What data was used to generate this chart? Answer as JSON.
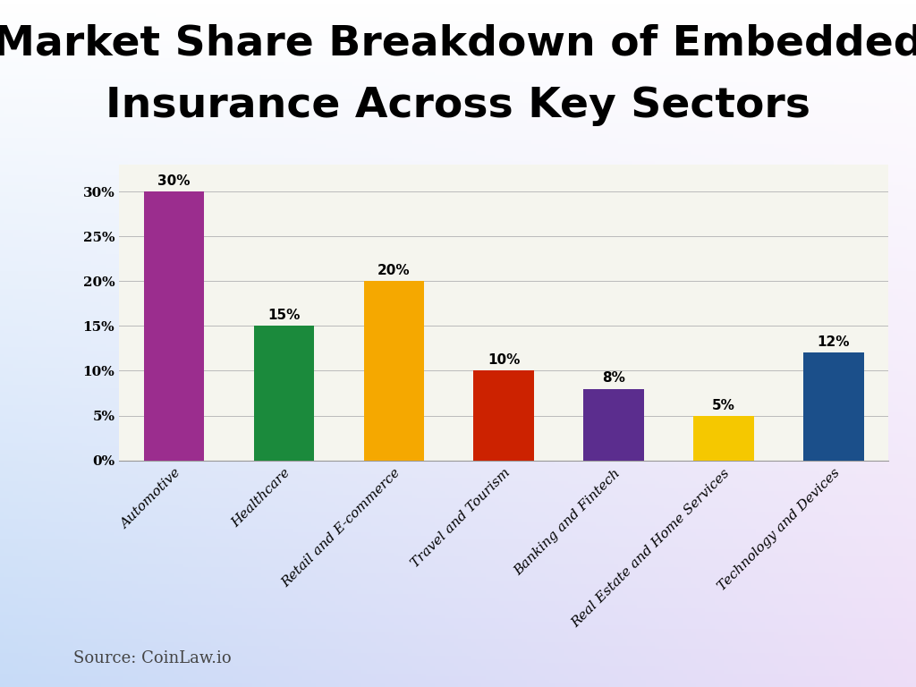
{
  "title_line1": "Market Share Breakdown of Embedded",
  "title_line2": "Insurance Across Key Sectors",
  "categories": [
    "Automotive",
    "Healthcare",
    "Retail and E-commerce",
    "Travel and Tourism",
    "Banking and Fintech",
    "Real Estate and Home Services",
    "Technology and Devices"
  ],
  "values": [
    30,
    15,
    20,
    10,
    8,
    5,
    12
  ],
  "bar_colors": [
    "#9B2D8E",
    "#1B8A3C",
    "#F5A800",
    "#CC2200",
    "#5B2D8E",
    "#F5C800",
    "#1B4F8A"
  ],
  "ylabel_ticks": [
    0,
    5,
    10,
    15,
    20,
    25,
    30
  ],
  "ytick_labels": [
    "0%",
    "5%",
    "10%",
    "15%",
    "20%",
    "25%",
    "30%"
  ],
  "source_text": "Source: CoinLaw.io",
  "ylim": [
    0,
    33
  ],
  "title_fontsize": 34,
  "label_fontsize": 11,
  "value_fontsize": 11,
  "source_fontsize": 13,
  "bar_width": 0.55
}
